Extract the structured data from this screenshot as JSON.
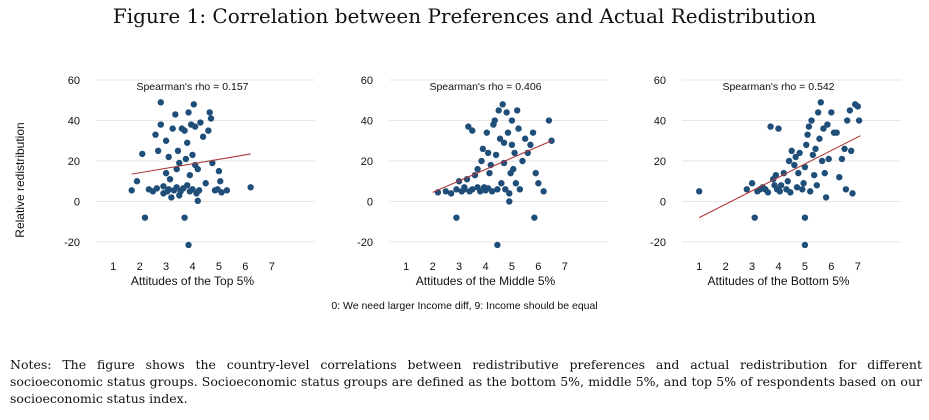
{
  "figure": {
    "title": "Figure 1: Correlation between Preferences and Actual Redistribution",
    "shared_ylabel": "Relative redistribution",
    "shared_note": "0: We need larger Income diff, 9: Income should be equal",
    "notes": "Notes: The figure shows the country-level correlations between redistributive preferences and actual redistribution for different socioeconomic status groups. Socioeconomic status groups are defined as the bottom 5%, middle 5%, and top 5% of respondents based on our socioeconomic status index."
  },
  "colors": {
    "points": "#1f4e79",
    "fit_line": "#b03a3a",
    "grid": "#e6e6e6",
    "text": "#111111"
  },
  "chart_data": [
    {
      "type": "scatter",
      "title": "",
      "annotation": "Spearman's rho = 0.157",
      "xlabel": "Attitudes of the Top 5%",
      "ylabel": "Relative redistribution",
      "xlim": [
        0.5,
        7.5
      ],
      "ylim": [
        -23,
        62
      ],
      "xticks": [
        "1",
        "2",
        "3",
        "4",
        "5",
        "6",
        "7"
      ],
      "yticks": [
        "-20",
        "0",
        "20",
        "40",
        "60"
      ],
      "grid": "horizontal",
      "fit_line": {
        "x": [
          1.7,
          6.2
        ],
        "y": [
          13.5,
          23.5
        ]
      },
      "points": [
        [
          1.7,
          5.5
        ],
        [
          1.9,
          10
        ],
        [
          2.1,
          23.5
        ],
        [
          2.2,
          -8
        ],
        [
          2.35,
          6
        ],
        [
          2.5,
          5
        ],
        [
          2.6,
          33
        ],
        [
          2.65,
          6.5
        ],
        [
          2.7,
          25
        ],
        [
          2.8,
          49
        ],
        [
          2.8,
          38
        ],
        [
          2.9,
          7.5
        ],
        [
          2.9,
          4
        ],
        [
          3.0,
          14
        ],
        [
          3.0,
          30
        ],
        [
          3.05,
          5
        ],
        [
          3.1,
          6
        ],
        [
          3.1,
          22
        ],
        [
          3.15,
          11
        ],
        [
          3.2,
          2
        ],
        [
          3.25,
          36
        ],
        [
          3.3,
          5.5
        ],
        [
          3.35,
          43
        ],
        [
          3.4,
          16
        ],
        [
          3.4,
          7
        ],
        [
          3.45,
          25
        ],
        [
          3.5,
          3
        ],
        [
          3.5,
          19
        ],
        [
          3.55,
          5
        ],
        [
          3.6,
          36
        ],
        [
          3.65,
          6.5
        ],
        [
          3.7,
          -8
        ],
        [
          3.7,
          35
        ],
        [
          3.75,
          21
        ],
        [
          3.8,
          8
        ],
        [
          3.8,
          29
        ],
        [
          3.85,
          44
        ],
        [
          3.9,
          5
        ],
        [
          3.9,
          13
        ],
        [
          3.95,
          38
        ],
        [
          4.0,
          23
        ],
        [
          4.0,
          6
        ],
        [
          4.05,
          48
        ],
        [
          4.1,
          18
        ],
        [
          4.1,
          37
        ],
        [
          4.15,
          4
        ],
        [
          4.2,
          16
        ],
        [
          4.25,
          5.5
        ],
        [
          4.3,
          39
        ],
        [
          4.4,
          32
        ],
        [
          4.5,
          9
        ],
        [
          4.6,
          35
        ],
        [
          4.65,
          44
        ],
        [
          4.7,
          41
        ],
        [
          4.75,
          19
        ],
        [
          4.85,
          5.5
        ],
        [
          4.95,
          6
        ],
        [
          5.0,
          15
        ],
        [
          5.05,
          10
        ],
        [
          5.1,
          4.5
        ],
        [
          5.3,
          5.5
        ],
        [
          6.2,
          7
        ],
        [
          3.85,
          -21.5
        ],
        [
          4.2,
          0.3
        ]
      ]
    },
    {
      "type": "scatter",
      "title": "",
      "annotation": "Spearman's rho = 0.406",
      "xlabel": "Attitudes of the Middle 5%",
      "ylabel": "",
      "xlim": [
        0.5,
        7.5
      ],
      "ylim": [
        -23,
        62
      ],
      "xticks": [
        "1",
        "2",
        "3",
        "4",
        "5",
        "6",
        "7"
      ],
      "yticks": [
        "-20",
        "0",
        "20",
        "40",
        "60"
      ],
      "grid": "horizontal",
      "fit_line": {
        "x": [
          2.0,
          6.5
        ],
        "y": [
          4.5,
          30
        ]
      },
      "points": [
        [
          2.2,
          4.5
        ],
        [
          2.5,
          5
        ],
        [
          2.7,
          4
        ],
        [
          2.9,
          6
        ],
        [
          2.9,
          -8
        ],
        [
          3.0,
          10
        ],
        [
          3.1,
          5
        ],
        [
          3.2,
          7
        ],
        [
          3.2,
          6
        ],
        [
          3.3,
          11
        ],
        [
          3.35,
          37
        ],
        [
          3.4,
          5
        ],
        [
          3.5,
          35
        ],
        [
          3.5,
          6
        ],
        [
          3.6,
          13
        ],
        [
          3.7,
          7
        ],
        [
          3.7,
          16
        ],
        [
          3.8,
          5
        ],
        [
          3.85,
          20
        ],
        [
          3.9,
          26
        ],
        [
          3.95,
          7
        ],
        [
          4.0,
          5.5
        ],
        [
          4.05,
          34
        ],
        [
          4.1,
          24
        ],
        [
          4.1,
          6.5
        ],
        [
          4.15,
          14
        ],
        [
          4.2,
          18
        ],
        [
          4.25,
          5
        ],
        [
          4.3,
          38
        ],
        [
          4.35,
          40
        ],
        [
          4.4,
          23
        ],
        [
          4.45,
          6
        ],
        [
          4.5,
          45
        ],
        [
          4.55,
          31
        ],
        [
          4.6,
          9
        ],
        [
          4.65,
          48
        ],
        [
          4.7,
          19
        ],
        [
          4.7,
          29
        ],
        [
          4.75,
          6
        ],
        [
          4.8,
          44
        ],
        [
          4.85,
          34
        ],
        [
          4.9,
          4
        ],
        [
          4.95,
          14
        ],
        [
          5.0,
          40
        ],
        [
          5.0,
          28
        ],
        [
          5.05,
          16
        ],
        [
          5.1,
          24
        ],
        [
          5.15,
          9
        ],
        [
          5.2,
          45
        ],
        [
          5.25,
          36
        ],
        [
          5.3,
          6
        ],
        [
          5.4,
          20
        ],
        [
          5.5,
          31
        ],
        [
          5.6,
          24
        ],
        [
          5.7,
          28
        ],
        [
          5.8,
          34
        ],
        [
          5.9,
          14
        ],
        [
          6.0,
          9
        ],
        [
          6.2,
          5
        ],
        [
          6.4,
          40
        ],
        [
          6.5,
          30
        ],
        [
          4.45,
          -21.5
        ],
        [
          5.85,
          -8
        ],
        [
          4.9,
          0
        ]
      ]
    },
    {
      "type": "scatter",
      "title": "",
      "annotation": "Spearman's rho = 0.542",
      "xlabel": "Attitudes of the Bottom 5%",
      "ylabel": "",
      "xlim": [
        0.5,
        7.5
      ],
      "ylim": [
        -23,
        62
      ],
      "xticks": [
        "1",
        "2",
        "3",
        "4",
        "5",
        "6",
        "7"
      ],
      "yticks": [
        "-20",
        "0",
        "20",
        "40",
        "60"
      ],
      "grid": "horizontal",
      "fit_line": {
        "x": [
          1.0,
          7.1
        ],
        "y": [
          -8,
          32.5
        ]
      },
      "points": [
        [
          1.0,
          5
        ],
        [
          2.8,
          6
        ],
        [
          3.0,
          9
        ],
        [
          3.1,
          -8
        ],
        [
          3.2,
          5
        ],
        [
          3.3,
          6
        ],
        [
          3.4,
          7
        ],
        [
          3.5,
          6
        ],
        [
          3.6,
          4.5
        ],
        [
          3.7,
          37
        ],
        [
          3.8,
          11
        ],
        [
          3.85,
          8
        ],
        [
          3.9,
          13
        ],
        [
          3.95,
          6
        ],
        [
          4.0,
          36
        ],
        [
          4.05,
          5
        ],
        [
          4.1,
          8
        ],
        [
          4.2,
          14
        ],
        [
          4.3,
          6
        ],
        [
          4.35,
          10
        ],
        [
          4.4,
          20
        ],
        [
          4.45,
          4.5
        ],
        [
          4.5,
          25
        ],
        [
          4.6,
          18
        ],
        [
          4.65,
          22
        ],
        [
          4.7,
          7
        ],
        [
          4.75,
          14
        ],
        [
          4.8,
          24
        ],
        [
          4.9,
          6
        ],
        [
          4.95,
          9
        ],
        [
          5.0,
          17
        ],
        [
          5.05,
          28
        ],
        [
          5.1,
          33
        ],
        [
          5.15,
          37
        ],
        [
          5.2,
          5
        ],
        [
          5.25,
          40
        ],
        [
          5.3,
          23
        ],
        [
          5.35,
          13
        ],
        [
          5.4,
          26
        ],
        [
          5.45,
          8
        ],
        [
          5.5,
          44
        ],
        [
          5.55,
          31
        ],
        [
          5.6,
          49
        ],
        [
          5.65,
          20
        ],
        [
          5.7,
          36
        ],
        [
          5.75,
          14
        ],
        [
          5.8,
          2
        ],
        [
          5.85,
          38
        ],
        [
          5.9,
          21
        ],
        [
          6.0,
          44
        ],
        [
          6.1,
          34
        ],
        [
          6.2,
          34
        ],
        [
          6.3,
          12
        ],
        [
          6.4,
          21
        ],
        [
          6.5,
          26
        ],
        [
          6.55,
          6
        ],
        [
          6.6,
          40
        ],
        [
          6.7,
          45
        ],
        [
          6.75,
          25
        ],
        [
          6.8,
          4
        ],
        [
          6.9,
          48
        ],
        [
          7.0,
          47
        ],
        [
          7.05,
          40
        ],
        [
          5.0,
          -21.5
        ],
        [
          5.0,
          -8
        ]
      ]
    }
  ]
}
